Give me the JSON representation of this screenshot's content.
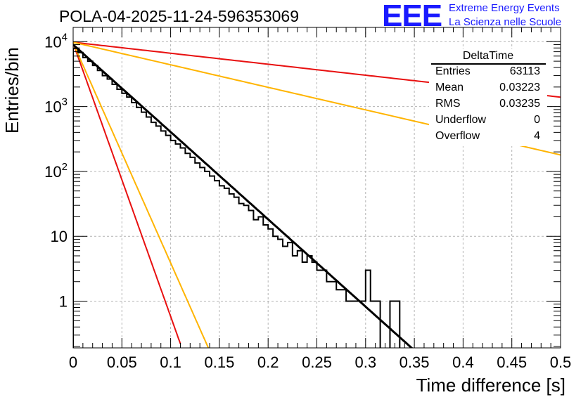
{
  "page": {
    "title": "POLA-04-2025-11-24-596353069",
    "logo": {
      "mark": "EEE",
      "line1": "Extreme Energy Events",
      "line2": "La Scienza nelle Scuole",
      "color": "#1a1aff"
    }
  },
  "stats": {
    "title": "DeltaTime",
    "rows": [
      {
        "name": "Entries",
        "value": "63113"
      },
      {
        "name": "Mean",
        "value": "0.03223"
      },
      {
        "name": "RMS",
        "value": "0.03235"
      },
      {
        "name": "Underflow",
        "value": "0"
      },
      {
        "name": "Overflow",
        "value": "4"
      }
    ]
  },
  "chart_data": {
    "type": "histogram",
    "title": "POLA-04-2025-11-24-596353069",
    "xlabel": "Time difference [s]",
    "ylabel": "Entries/bin",
    "xlim": [
      0,
      0.5
    ],
    "ylim_log10": [
      -0.72,
      4.22
    ],
    "log_y": true,
    "grid": true,
    "x_tick_labels": [
      "0",
      "0.05",
      "0.1",
      "0.15",
      "0.2",
      "0.25",
      "0.3",
      "0.35",
      "0.4",
      "0.45",
      "0.5"
    ],
    "y_ticks": [
      {
        "value": 1,
        "label": "1"
      },
      {
        "value": 10,
        "label": "10"
      },
      {
        "value": 100,
        "base": "10",
        "exp": "2"
      },
      {
        "value": 1000,
        "base": "10",
        "exp": "3"
      },
      {
        "value": 10000,
        "base": "10",
        "exp": "4"
      }
    ],
    "histogram": {
      "bin_width": 0.005,
      "x_start": 0,
      "color": "#000000",
      "values": [
        7900,
        6800,
        5700,
        5000,
        4300,
        3600,
        3000,
        2650,
        2200,
        1850,
        1600,
        1400,
        1150,
        970,
        820,
        690,
        570,
        500,
        420,
        360,
        300,
        265,
        230,
        190,
        165,
        135,
        115,
        100,
        85,
        72,
        60,
        55,
        45,
        40,
        32,
        30,
        25,
        18,
        20,
        15,
        13,
        10,
        9,
        7,
        8,
        5,
        6,
        4,
        5,
        4,
        3,
        3,
        2,
        2,
        1.5,
        1.5,
        1,
        1,
        1,
        1,
        3,
        1,
        1,
        0,
        0,
        1,
        1,
        0,
        0,
        0,
        0,
        0,
        0,
        0,
        0,
        0,
        0,
        0,
        0,
        0,
        0,
        0,
        0,
        0,
        0,
        0,
        0,
        0,
        0,
        0,
        0,
        0,
        0,
        0,
        0,
        0,
        0,
        0,
        0,
        0
      ]
    },
    "fits": [
      {
        "name": "fit-black",
        "color": "#000000",
        "amplitude": 9000,
        "slope_per_s": 31,
        "x_end": 0.354
      },
      {
        "name": "fit-red-steep",
        "color": "#e81010",
        "amplitude": 9500,
        "slope_per_s": 97,
        "x_end": 0.11
      },
      {
        "name": "fit-orange-steep",
        "color": "#ffb400",
        "amplitude": 9500,
        "slope_per_s": 78,
        "x_end": 0.14
      },
      {
        "name": "fit-red-shallow",
        "color": "#e81010",
        "amplitude": 9800,
        "slope_per_s": 3.9,
        "x_end": 0.5
      },
      {
        "name": "fit-orange-shallow",
        "color": "#ffb400",
        "amplitude": 9800,
        "slope_per_s": 8.0,
        "x_end": 0.5
      }
    ]
  }
}
